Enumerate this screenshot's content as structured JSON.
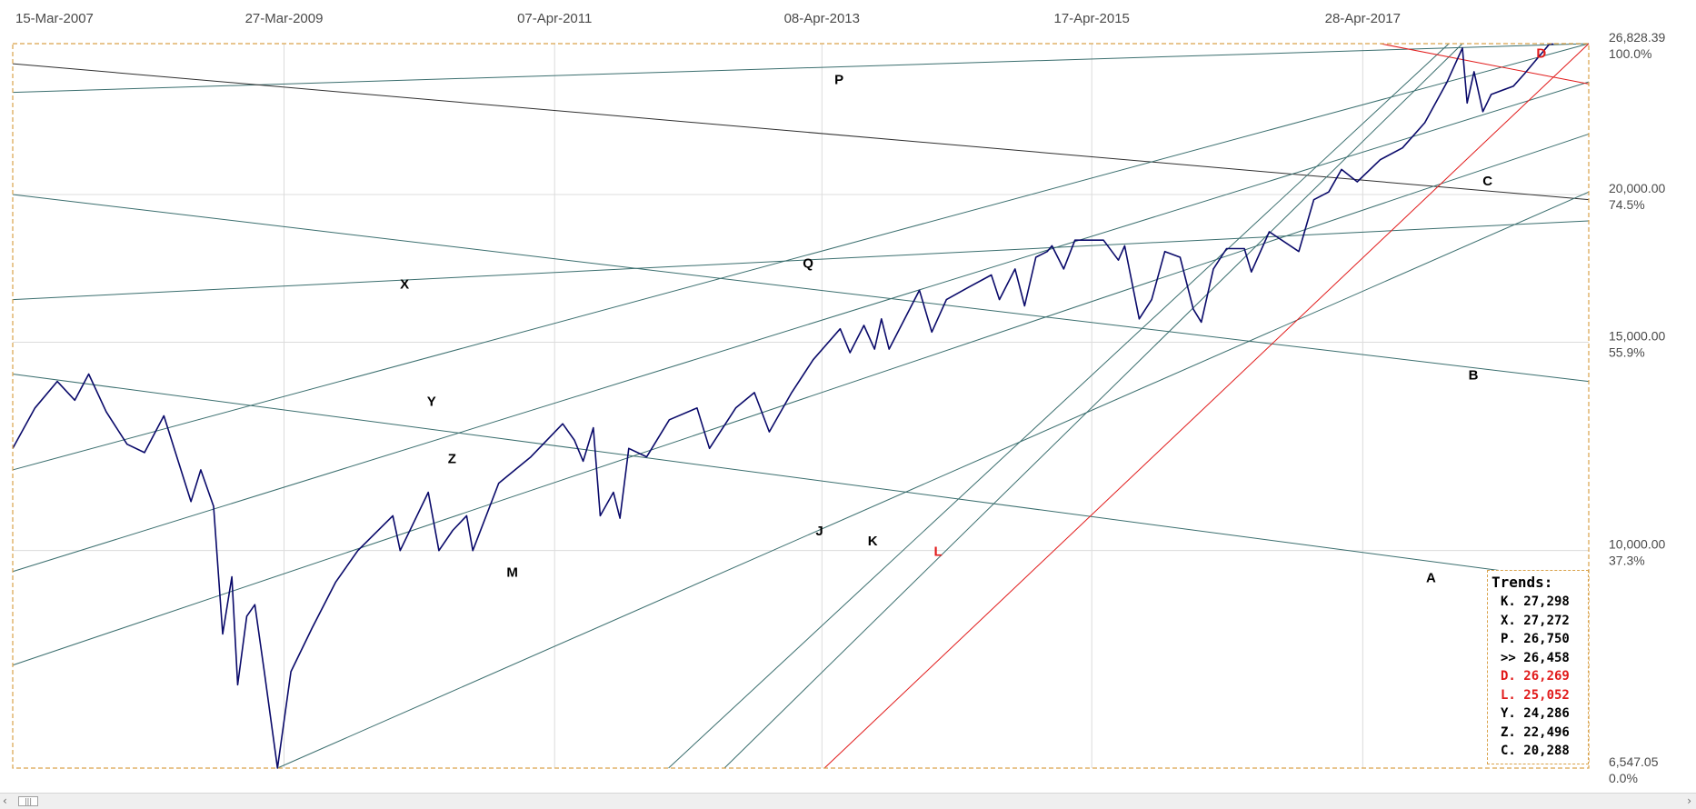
{
  "chart_data": {
    "type": "line",
    "y_scale": "log",
    "ylim": [
      6547.05,
      26828.39
    ],
    "grid": true,
    "x_ticks": [
      "15-Mar-2007",
      "27-Mar-2009",
      "07-Apr-2011",
      "08-Apr-2013",
      "17-Apr-2015",
      "28-Apr-2017"
    ],
    "y_ticks": [
      {
        "value": 26828.39,
        "label": "26,828.39",
        "pct": "100.0%"
      },
      {
        "value": 20000,
        "label": "20,000.00",
        "pct": "74.5%"
      },
      {
        "value": 15000,
        "label": "15,000.00",
        "pct": "55.9%"
      },
      {
        "value": 10000,
        "label": "10,000.00",
        "pct": "37.3%"
      },
      {
        "value": 6547.05,
        "label": "6,547.05",
        "pct": "0.0%"
      }
    ],
    "series": [
      {
        "color": "#0a0a6a",
        "x": [
          "2007-03-15",
          "2007-05-15",
          "2007-07-15",
          "2007-09-01",
          "2007-10-09",
          "2007-11-26",
          "2008-01-22",
          "2008-03-10",
          "2008-05-02",
          "2008-07-15",
          "2008-08-11",
          "2008-09-15",
          "2008-10-10",
          "2008-11-04",
          "2008-11-20",
          "2008-12-15",
          "2009-01-06",
          "2009-02-01",
          "2009-03-09",
          "2009-04-15",
          "2009-06-12",
          "2009-08-15",
          "2009-10-15",
          "2010-01-19",
          "2010-02-08",
          "2010-04-26",
          "2010-05-25",
          "2010-07-02",
          "2010-08-09",
          "2010-08-26",
          "2010-11-05",
          "2011-02-01",
          "2011-04-29",
          "2011-05-31",
          "2011-06-24",
          "2011-07-22",
          "2011-08-10",
          "2011-09-15",
          "2011-10-03",
          "2011-10-27",
          "2011-12-15",
          "2012-02-15",
          "2012-05-01",
          "2012-06-04",
          "2012-08-15",
          "2012-10-05",
          "2012-11-15",
          "2013-01-15",
          "2013-03-15",
          "2013-05-28",
          "2013-06-24",
          "2013-08-01",
          "2013-08-30",
          "2013-09-18",
          "2013-10-09",
          "2013-12-31",
          "2014-02-03",
          "2014-03-15",
          "2014-05-15",
          "2014-07-16",
          "2014-08-07",
          "2014-09-19",
          "2014-10-15",
          "2014-11-15",
          "2014-12-16",
          "2014-12-29",
          "2015-01-30",
          "2015-03-02",
          "2015-05-19",
          "2015-06-29",
          "2015-07-16",
          "2015-08-25",
          "2015-09-28",
          "2015-11-03",
          "2015-12-15",
          "2016-01-20",
          "2016-02-11",
          "2016-03-15",
          "2016-04-20",
          "2016-06-08",
          "2016-06-27",
          "2016-08-15",
          "2016-11-04",
          "2016-12-15",
          "2017-01-25",
          "2017-03-01",
          "2017-04-13",
          "2017-06-15",
          "2017-08-15",
          "2017-10-15",
          "2017-12-15",
          "2018-01-26",
          "2018-02-08",
          "2018-02-27",
          "2018-03-23",
          "2018-04-15",
          "2018-06-15",
          "2018-07-15",
          "2018-09-21",
          "2018-10-03"
        ],
        "y": [
          12200,
          13200,
          13900,
          13400,
          14100,
          13100,
          12300,
          12100,
          13000,
          11000,
          11700,
          10900,
          8500,
          9500,
          7700,
          8800,
          9000,
          7900,
          6547,
          7900,
          8600,
          9400,
          10000,
          10700,
          10000,
          11200,
          10000,
          10400,
          10700,
          10000,
          11400,
          12000,
          12800,
          12400,
          11900,
          12700,
          10700,
          11200,
          10650,
          12200,
          12000,
          12900,
          13200,
          12200,
          13200,
          13600,
          12600,
          13600,
          14500,
          15400,
          14700,
          15500,
          14800,
          15700,
          14800,
          16600,
          15300,
          16300,
          16700,
          17100,
          16300,
          17300,
          16100,
          17700,
          17900,
          18100,
          17300,
          18300,
          18300,
          17600,
          18100,
          15700,
          16300,
          17900,
          17700,
          16000,
          15600,
          17300,
          18000,
          18000,
          17200,
          18600,
          17900,
          19800,
          20100,
          21000,
          20500,
          21400,
          21900,
          23000,
          24900,
          26600,
          23900,
          25400,
          23500,
          24300,
          24700,
          25300,
          26800,
          26800
        ]
      }
    ],
    "trendlines": [
      {
        "name": "P",
        "color": "#3a6e6e",
        "start": [
          "2007-03-15",
          24400
        ],
        "end": [
          "2019-01-07",
          26828
        ]
      },
      {
        "name": "C",
        "color": "#2f2f2f",
        "start": [
          "2007-03-15",
          25800
        ],
        "end": [
          "2019-01-07",
          19800
        ]
      },
      {
        "name": "Q",
        "color": "#3a6e6e",
        "start": [
          "2007-03-15",
          16300
        ],
        "end": [
          "2019-01-07",
          19000
        ]
      },
      {
        "name": "B",
        "color": "#3a6e6e",
        "start": [
          "2007-03-15",
          20000
        ],
        "end": [
          "2019-01-07",
          13900
        ]
      },
      {
        "name": "A",
        "color": "#3a6e6e",
        "start": [
          "2007-03-15",
          14100
        ],
        "end": [
          "2019-01-07",
          9400
        ]
      },
      {
        "name": "X",
        "color": "#3a6e6e",
        "start": [
          "2007-03-15",
          11700
        ],
        "end": [
          "2019-01-07",
          26828
        ]
      },
      {
        "name": "Y",
        "color": "#3a6e6e",
        "start": [
          "2007-03-15",
          9600
        ],
        "end": [
          "2019-01-07",
          24900
        ]
      },
      {
        "name": "Z",
        "color": "#3a6e6e",
        "start": [
          "2007-03-15",
          8000
        ],
        "end": [
          "2019-01-07",
          22500
        ]
      },
      {
        "name": "M",
        "color": "#3a6e6e",
        "start": [
          "2009-03-09",
          6547
        ],
        "end": [
          "2019-01-07",
          20100
        ]
      },
      {
        "name": "J",
        "color": "#3a6e6e",
        "start": [
          "2012-02-13",
          6547
        ],
        "end": [
          "2017-12-20",
          26828
        ]
      },
      {
        "name": "K",
        "color": "#3a6e6e",
        "start": [
          "2012-07-15",
          6547
        ],
        "end": [
          "2018-01-26",
          26828
        ]
      },
      {
        "name": "L",
        "color": "#e11b1b",
        "start": [
          "2013-04-15",
          6547
        ],
        "end": [
          "2019-01-07",
          26828
        ]
      },
      {
        "name": "D",
        "color": "#e11b1b",
        "start": [
          "2017-06-15",
          26828
        ],
        "end": [
          "2019-01-07",
          24800
        ]
      }
    ],
    "trend_labels": [
      {
        "text": "P",
        "color": "#000000",
        "x": "2013-05-25",
        "y": 24800
      },
      {
        "text": "C",
        "color": "#000000",
        "x": "2018-04-05",
        "y": 20350
      },
      {
        "text": "Q",
        "color": "#000000",
        "x": "2013-03-01",
        "y": 17350
      },
      {
        "text": "B",
        "color": "#000000",
        "x": "2018-02-25",
        "y": 13950
      },
      {
        "text": "A",
        "color": "#000000",
        "x": "2017-11-01",
        "y": 9400
      },
      {
        "text": "X",
        "color": "#000000",
        "x": "2010-02-20",
        "y": 16650
      },
      {
        "text": "Y",
        "color": "#000000",
        "x": "2010-05-05",
        "y": 13250
      },
      {
        "text": "Z",
        "color": "#000000",
        "x": "2010-06-30",
        "y": 11850
      },
      {
        "text": "M",
        "color": "#000000",
        "x": "2010-12-12",
        "y": 9500
      },
      {
        "text": "J",
        "color": "#000000",
        "x": "2013-04-01",
        "y": 10300
      },
      {
        "text": "K",
        "color": "#000000",
        "x": "2013-08-25",
        "y": 10100
      },
      {
        "text": "L",
        "color": "#e11b1b",
        "x": "2014-02-20",
        "y": 9900
      },
      {
        "text": "D",
        "color": "#e11b1b",
        "x": "2018-08-30",
        "y": 26100
      }
    ]
  },
  "legend": {
    "title": "Trends:",
    "rows": [
      {
        "label": "K. 27,298",
        "color": "#000000"
      },
      {
        "label": "X. 27,272",
        "color": "#000000"
      },
      {
        "label": "P. 26,750",
        "color": "#000000"
      },
      {
        "label": ">> 26,458",
        "color": "#000000"
      },
      {
        "label": "D. 26,269",
        "color": "#e11b1b"
      },
      {
        "label": "L. 25,052",
        "color": "#e11b1b"
      },
      {
        "label": "Y. 24,286",
        "color": "#000000"
      },
      {
        "label": "Z. 22,496",
        "color": "#000000"
      },
      {
        "label": "C. 20,288",
        "color": "#000000"
      }
    ]
  },
  "scrollbar": {
    "left_arrow": "‹",
    "right_arrow": "›",
    "thumb_grip": "|||"
  }
}
